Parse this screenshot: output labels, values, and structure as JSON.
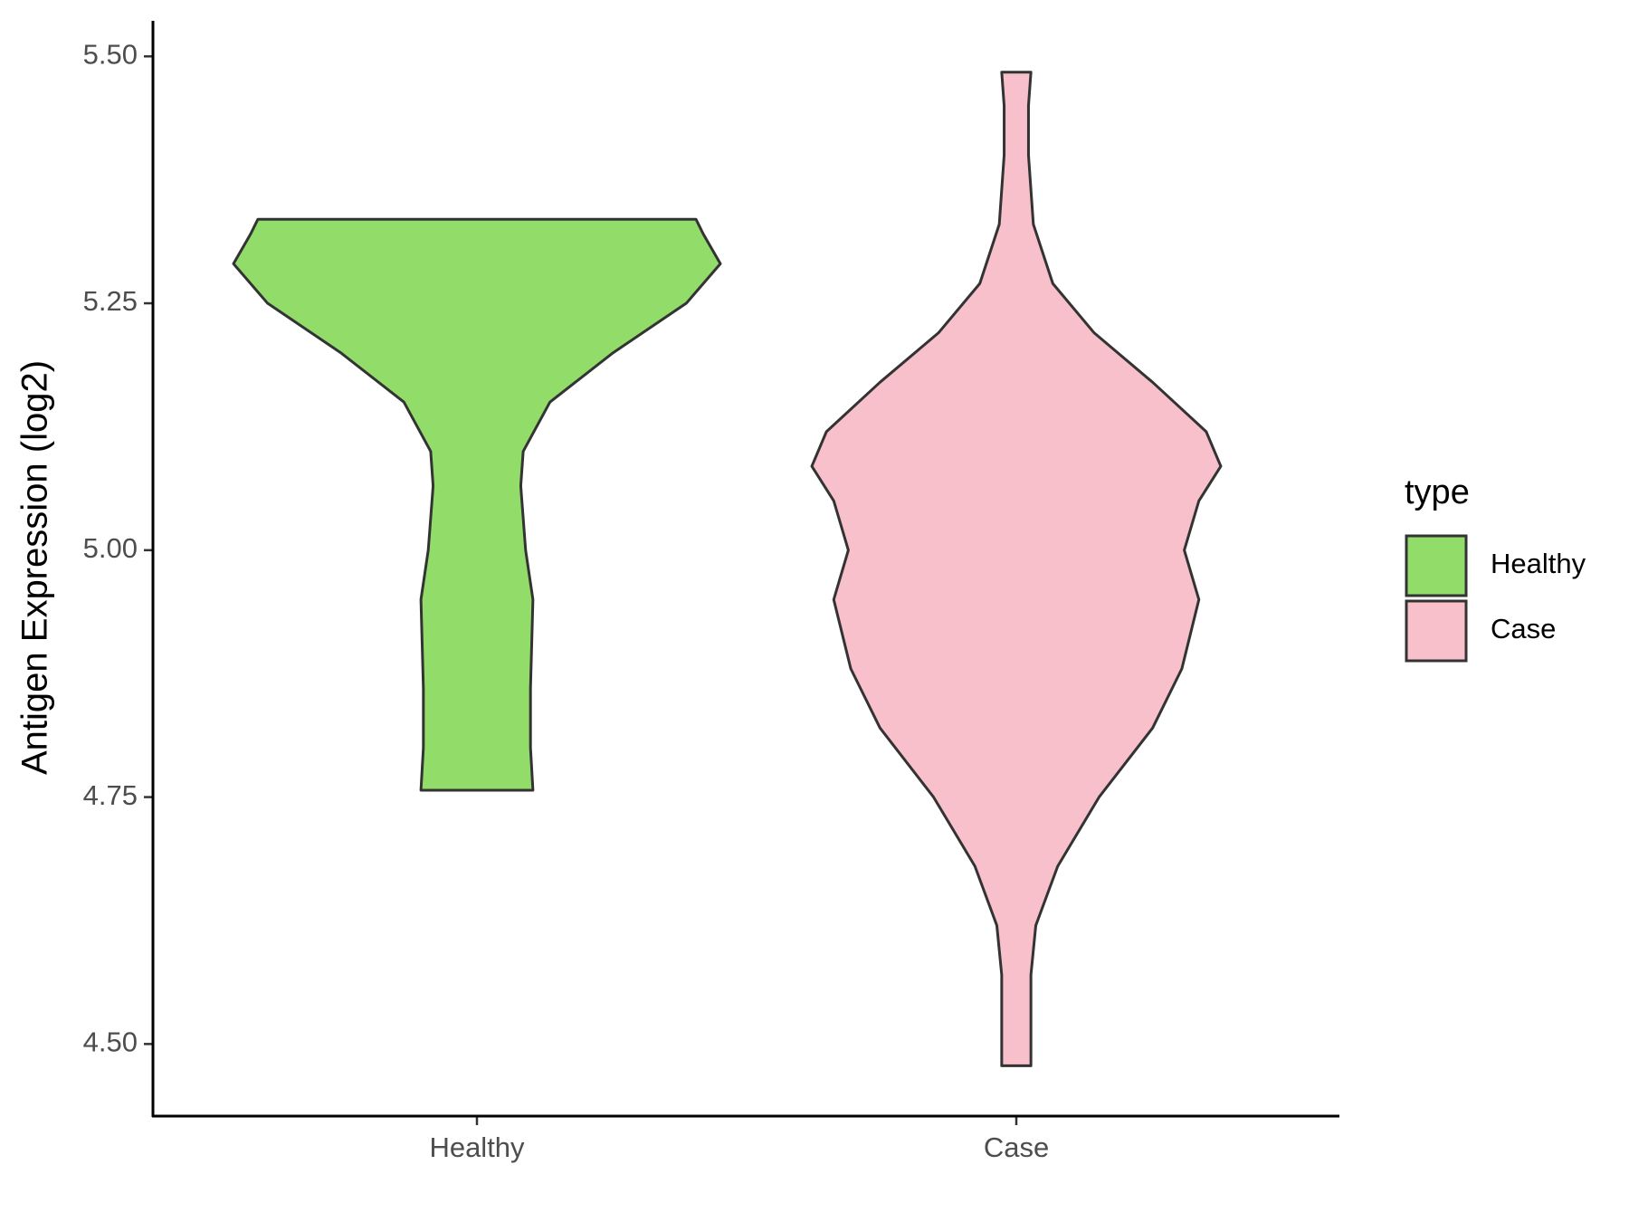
{
  "chart_data": {
    "type": "violin",
    "y_label": "Antigen Expression (log2)",
    "categories": [
      "Healthy",
      "Case"
    ],
    "legend_title": "type",
    "ylim": [
      4.427,
      5.536
    ],
    "yticks": [
      {
        "value": 4.5,
        "label": "4.50"
      },
      {
        "value": 4.75,
        "label": "4.75"
      },
      {
        "value": 5,
        "label": "5.00"
      },
      {
        "value": 5.25,
        "label": "5.25"
      },
      {
        "value": 5.5,
        "label": "5.50"
      }
    ],
    "series": [
      {
        "name": "Healthy",
        "color": "#92dd6a",
        "y": [
          4.757,
          4.8,
          4.86,
          4.95,
          5.0,
          5.065,
          5.1,
          5.15,
          5.2,
          5.25,
          5.29,
          5.32,
          5.335
        ],
        "density": [
          0.23,
          0.22,
          0.22,
          0.23,
          0.2,
          0.18,
          0.19,
          0.3,
          0.56,
          0.86,
          1.0,
          0.93,
          0.9
        ]
      },
      {
        "name": "Case",
        "color": "#f7c0cb",
        "y": [
          4.478,
          4.52,
          4.57,
          4.62,
          4.68,
          4.75,
          4.82,
          4.88,
          4.95,
          5.0,
          5.05,
          5.085,
          5.12,
          5.17,
          5.22,
          5.27,
          5.33,
          5.4,
          5.45,
          5.484
        ],
        "density": [
          0.06,
          0.06,
          0.06,
          0.08,
          0.17,
          0.34,
          0.56,
          0.68,
          0.75,
          0.69,
          0.75,
          0.84,
          0.78,
          0.56,
          0.32,
          0.15,
          0.07,
          0.05,
          0.05,
          0.06
        ]
      }
    ]
  }
}
